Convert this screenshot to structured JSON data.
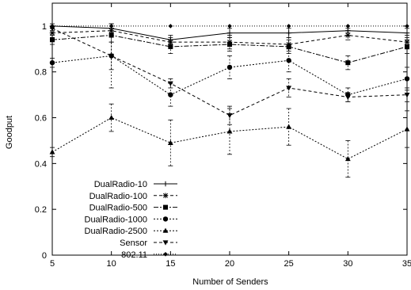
{
  "chart_data": {
    "type": "line",
    "title": "",
    "xlabel": "Number of Senders",
    "ylabel": "Goodput",
    "xlim": [
      5,
      35
    ],
    "ylim": [
      0,
      1.1
    ],
    "x_ticks": [
      "5",
      "10",
      "15",
      "20",
      "25",
      "30",
      "35"
    ],
    "y_ticks": [
      "0",
      "0.2",
      "0.4",
      "0.6",
      "0.8",
      "1"
    ],
    "grid": false,
    "legend_position": "bottom-left",
    "x": [
      5,
      10,
      15,
      20,
      25,
      30,
      35
    ],
    "series": [
      {
        "name": "DualRadio-10",
        "marker": "plus",
        "dash": "solid",
        "values": [
          1.0,
          0.99,
          0.94,
          0.97,
          0.97,
          0.98,
          0.97
        ],
        "errors": [
          0.01,
          0.02,
          0.02,
          0.02,
          0.02,
          0.01,
          0.02
        ]
      },
      {
        "name": "DualRadio-100",
        "marker": "star",
        "dash": "dash",
        "values": [
          0.97,
          0.98,
          0.93,
          0.93,
          0.92,
          0.96,
          0.93
        ],
        "errors": [
          0.02,
          0.02,
          0.02,
          0.03,
          0.03,
          0.02,
          0.03
        ]
      },
      {
        "name": "DualRadio-500",
        "marker": "square",
        "dash": "dashdot",
        "values": [
          0.94,
          0.96,
          0.91,
          0.92,
          0.91,
          0.84,
          0.91
        ],
        "errors": [
          0.02,
          0.03,
          0.03,
          0.03,
          0.03,
          0.03,
          0.03
        ]
      },
      {
        "name": "DualRadio-1000",
        "marker": "circle",
        "dash": "dot",
        "values": [
          0.84,
          0.87,
          0.7,
          0.82,
          0.85,
          0.7,
          0.77
        ],
        "errors": [
          0.02,
          0.06,
          0.05,
          0.05,
          0.05,
          0.03,
          0.05
        ]
      },
      {
        "name": "DualRadio-2500",
        "marker": "triangle-up",
        "dash": "dot",
        "values": [
          0.45,
          0.6,
          0.49,
          0.54,
          0.56,
          0.42,
          0.55
        ],
        "errors": [
          0.02,
          0.06,
          0.1,
          0.1,
          0.08,
          0.08,
          0.08
        ]
      },
      {
        "name": "Sensor",
        "marker": "triangle-down",
        "dash": "dash",
        "values": [
          0.99,
          0.87,
          0.75,
          0.61,
          0.73,
          0.69,
          0.7
        ],
        "errors": [
          0.01,
          0.14,
          0.02,
          0.04,
          0.04,
          0.02,
          0.03
        ]
      },
      {
        "name": "802.11",
        "marker": "diamond",
        "dash": "finedot",
        "values": [
          1.0,
          1.0,
          1.0,
          1.0,
          1.0,
          1.0,
          1.0
        ],
        "errors": [
          0,
          0,
          0,
          0,
          0,
          0,
          0
        ]
      }
    ]
  }
}
